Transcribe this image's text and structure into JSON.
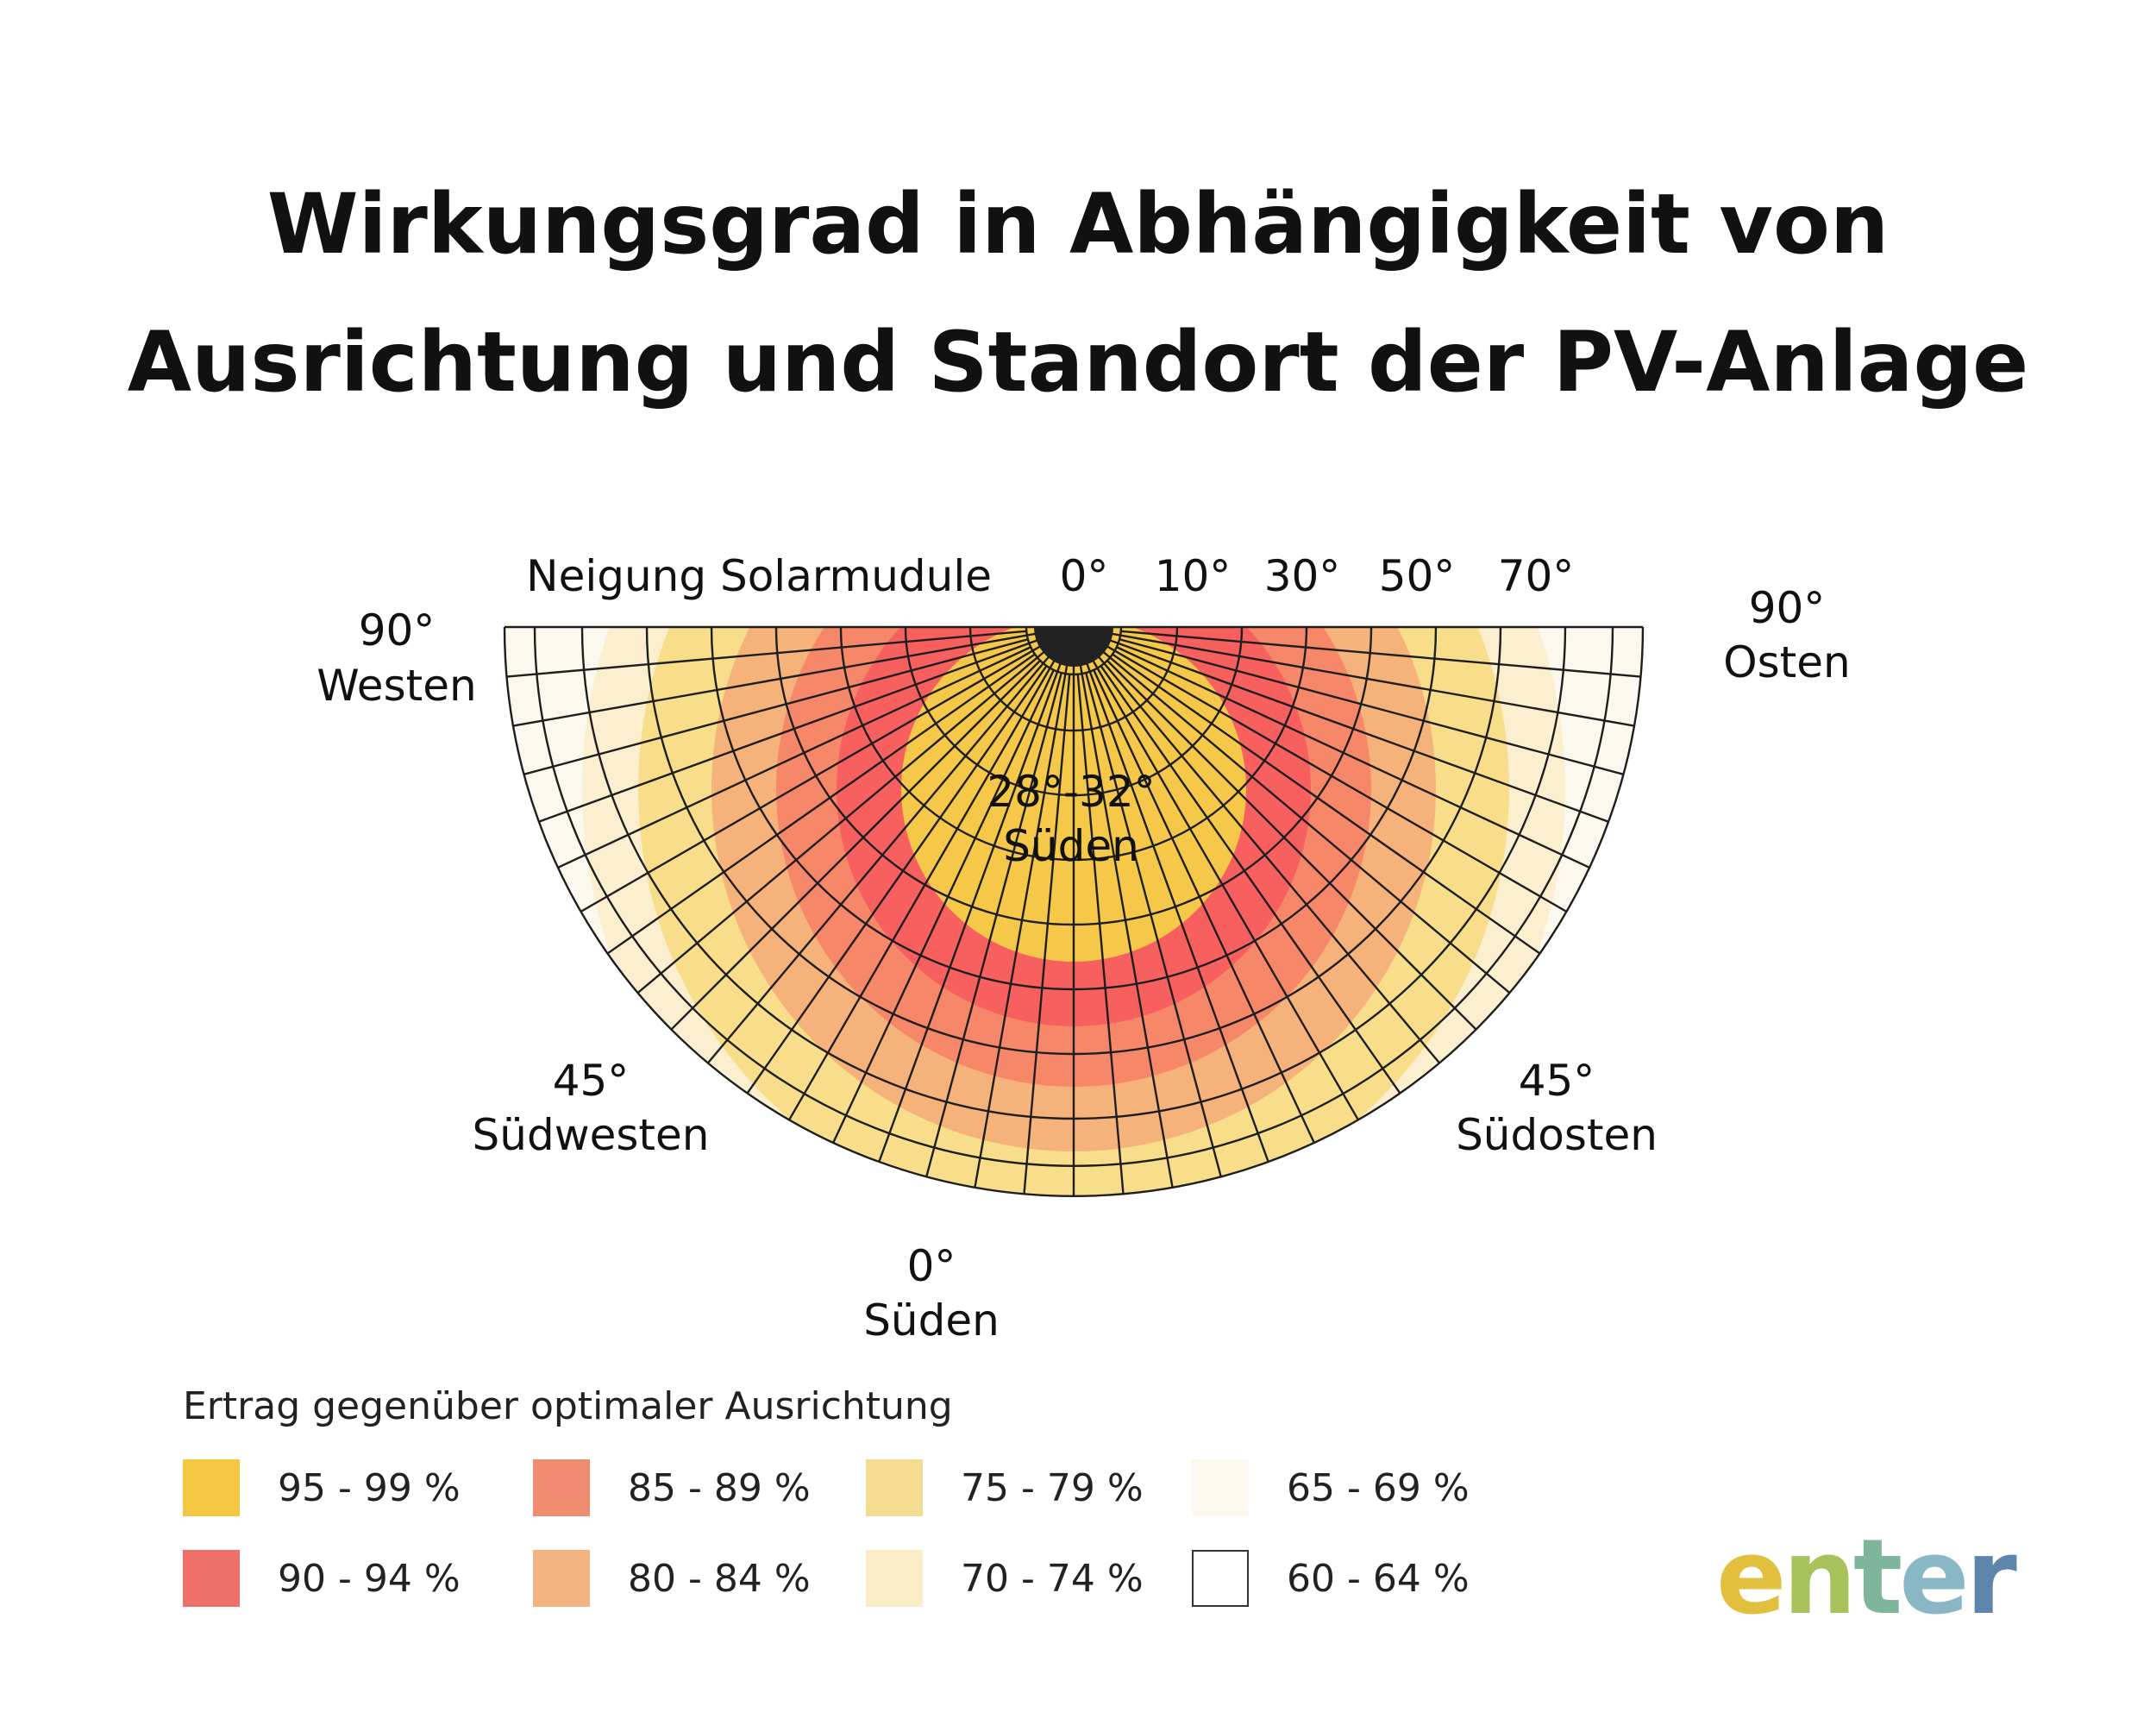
{
  "title": {
    "line1": "Wirkungsgrad in Abhängigkeit von",
    "line2": "Ausrichtung und Standort der PV-Anlage"
  },
  "diagram": {
    "tilt_axis_label": "Neigung Solarmudule",
    "tilt_ticks": [
      "0°",
      "10°",
      "30°",
      "50°",
      "70°"
    ],
    "optimum": {
      "tilt": "28°-32°",
      "direction": "Süden"
    },
    "directions": {
      "west": {
        "angle": "90°",
        "name": "Westen"
      },
      "east": {
        "angle": "90°",
        "name": "Osten"
      },
      "southwest": {
        "angle": "45°",
        "name": "Südwesten"
      },
      "southeast": {
        "angle": "45°",
        "name": "Südosten"
      },
      "south": {
        "angle": "0°",
        "name": "Süden"
      }
    },
    "zone_colors": [
      "#fdf8ee",
      "#fcefcf",
      "#f8de8a",
      "#f5b27a",
      "#f78769",
      "#f7605f",
      "#f5c84a"
    ],
    "grid_color": "#1e1e1e",
    "center_color": "#222222"
  },
  "legend": {
    "title": "Ertrag gegenüber optimaler Ausrichtung",
    "items": [
      {
        "label": "95 - 99 %",
        "color": "#f5c844"
      },
      {
        "label": "90 - 94 %",
        "color": "#ef7068"
      },
      {
        "label": "85 - 89 %",
        "color": "#f08c72"
      },
      {
        "label": "80 - 84 %",
        "color": "#f2b382"
      },
      {
        "label": "75 - 79 %",
        "color": "#f3dc92"
      },
      {
        "label": "70 - 74 %",
        "color": "#fbecc8"
      },
      {
        "label": "65 - 69 %",
        "color": "#fdf8ee"
      },
      {
        "label": "60 - 64 %",
        "color": "#ffffff"
      }
    ]
  },
  "logo": {
    "letters": [
      "e",
      "n",
      "t",
      "e",
      "r"
    ],
    "colors": [
      "#e2c03d",
      "#a7c25a",
      "#7fb59a",
      "#8ab7c6",
      "#5e86ad"
    ]
  }
}
